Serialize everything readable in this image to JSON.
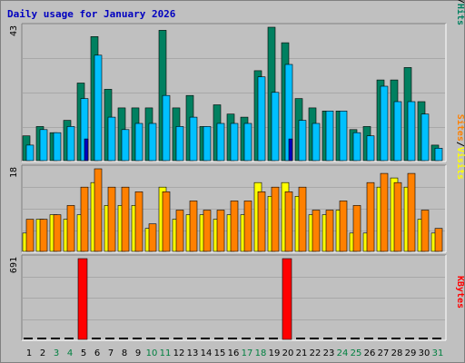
{
  "title": "Daily usage for January 2026",
  "colors": {
    "hits": "#008060",
    "files": "#00c0ff",
    "pages": "#00e0ff",
    "visits": "#ffff00",
    "sites": "#ff8000",
    "kbytes": "#ff0000",
    "weekday_label": "#000000",
    "weekend_label": "#008040",
    "labels_blue": "#0000c0"
  },
  "legend": {
    "top": [
      "Pages",
      "/",
      "Files",
      "/",
      "Hits"
    ],
    "middle": [
      "Sites",
      "/",
      "Visits"
    ],
    "bottom": [
      "KBytes"
    ]
  },
  "chart_data": [
    {
      "type": "bar",
      "name": "hits-files-pages",
      "categories": [
        "1",
        "2",
        "3",
        "4",
        "5",
        "6",
        "7",
        "8",
        "9",
        "10",
        "11",
        "12",
        "13",
        "14",
        "15",
        "16",
        "17",
        "18",
        "19",
        "20",
        "21",
        "22",
        "23",
        "24",
        "25",
        "26",
        "27",
        "28",
        "29",
        "30",
        "31"
      ],
      "ymax_label": "43",
      "ylim": [
        0,
        43
      ],
      "weekend_days": [
        3,
        4,
        10,
        11,
        17,
        18,
        24,
        25,
        31
      ],
      "series": [
        {
          "name": "Hits",
          "values": [
            8,
            11,
            9,
            13,
            25,
            40,
            23,
            17,
            17,
            17,
            42,
            17,
            21,
            11,
            18,
            15,
            14,
            29,
            43,
            38,
            20,
            17,
            16,
            16,
            10,
            11,
            26,
            26,
            30,
            19,
            5
          ]
        },
        {
          "name": "Files",
          "values": [
            5,
            10,
            9,
            11,
            20,
            34,
            14,
            10,
            12,
            12,
            21,
            11,
            14,
            11,
            12,
            12,
            12,
            27,
            22,
            31,
            13,
            12,
            16,
            16,
            9,
            8,
            24,
            19,
            19,
            15,
            4
          ]
        },
        {
          "name": "Pages",
          "values": [
            0,
            0,
            0,
            0,
            7,
            0,
            0,
            0,
            0,
            0,
            0,
            0,
            0,
            0,
            0,
            0,
            0,
            0,
            0,
            7,
            0,
            0,
            0,
            0,
            0,
            0,
            0,
            0,
            0,
            0,
            0
          ]
        }
      ]
    },
    {
      "type": "bar",
      "name": "sites-visits",
      "categories": [
        "1",
        "2",
        "3",
        "4",
        "5",
        "6",
        "7",
        "8",
        "9",
        "10",
        "11",
        "12",
        "13",
        "14",
        "15",
        "16",
        "17",
        "18",
        "19",
        "20",
        "21",
        "22",
        "23",
        "24",
        "25",
        "26",
        "27",
        "28",
        "29",
        "30",
        "31"
      ],
      "ymax_label": "18",
      "ylim": [
        0,
        18
      ],
      "series": [
        {
          "name": "Visits",
          "values": [
            4,
            7,
            8,
            7,
            8,
            15,
            10,
            10,
            10,
            5,
            14,
            7,
            8,
            8,
            7,
            8,
            8,
            15,
            12,
            15,
            12,
            8,
            8,
            9,
            4,
            4,
            14,
            16,
            14,
            7,
            4
          ]
        },
        {
          "name": "Sites",
          "values": [
            7,
            7,
            8,
            10,
            14,
            18,
            14,
            14,
            13,
            6,
            13,
            9,
            11,
            9,
            9,
            11,
            11,
            13,
            14,
            13,
            14,
            9,
            9,
            11,
            10,
            15,
            17,
            15,
            17,
            9,
            5
          ]
        }
      ]
    },
    {
      "type": "bar",
      "name": "kbytes",
      "categories": [
        "1",
        "2",
        "3",
        "4",
        "5",
        "6",
        "7",
        "8",
        "9",
        "10",
        "11",
        "12",
        "13",
        "14",
        "15",
        "16",
        "17",
        "18",
        "19",
        "20",
        "21",
        "22",
        "23",
        "24",
        "25",
        "26",
        "27",
        "28",
        "29",
        "30",
        "31"
      ],
      "ymax_label": "691",
      "ylim": [
        0,
        691
      ],
      "series": [
        {
          "name": "KBytes",
          "values": [
            0,
            0,
            0,
            0,
            691,
            0,
            0,
            0,
            0,
            0,
            0,
            0,
            0,
            0,
            0,
            0,
            0,
            0,
            0,
            691,
            0,
            0,
            0,
            0,
            0,
            0,
            0,
            0,
            0,
            0,
            0
          ]
        }
      ]
    }
  ]
}
